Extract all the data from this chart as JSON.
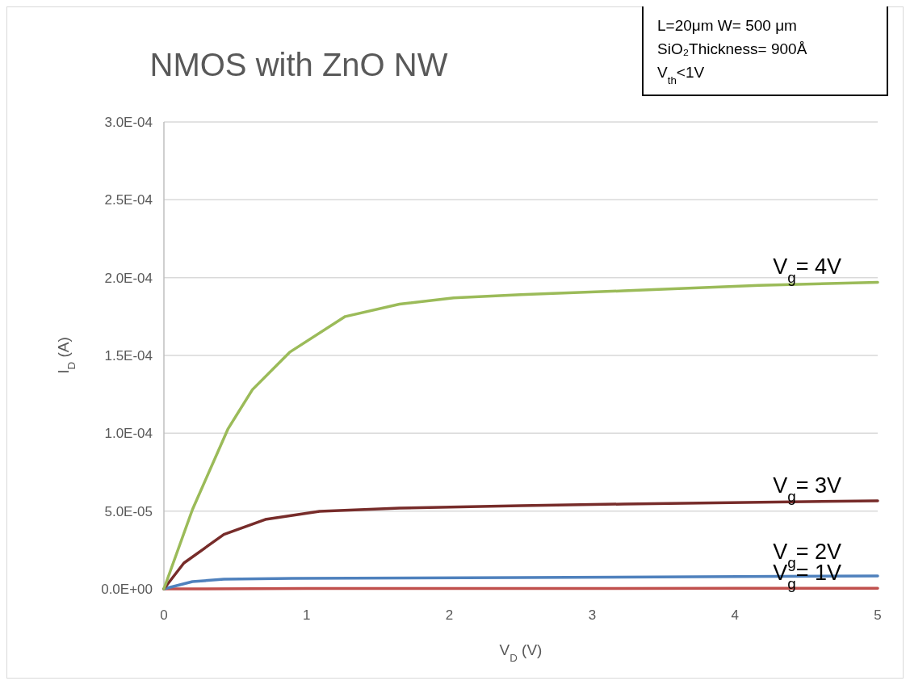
{
  "chart_data": {
    "type": "line",
    "title": "NMOS with ZnO NW",
    "xlabel": "V$_{D}$ (V)",
    "ylabel": "I$_{D}$ (A)",
    "xlim": [
      0,
      5
    ],
    "xticks": [
      0,
      1,
      2,
      3,
      4,
      5
    ],
    "ylim": [
      0,
      0.0003
    ],
    "yticks": [
      {
        "value": 0,
        "label": "0.0E+00"
      },
      {
        "value": 5e-05,
        "label": "5.0E-05"
      },
      {
        "value": 0.0001,
        "label": "1.0E-04"
      },
      {
        "value": 0.00015,
        "label": "1.5E-04"
      },
      {
        "value": 0.0002,
        "label": "2.0E-04"
      },
      {
        "value": 0.00025,
        "label": "2.5E-04"
      },
      {
        "value": 0.0003,
        "label": "3.0E-04"
      }
    ],
    "grid": "y",
    "line_style": "solid",
    "annotations": [
      "L=20μm W= 500 μm",
      "SiO₂Thickness= 900Å",
      "V$_{th}$<1V"
    ],
    "series": [
      {
        "name": "V$_{g}$= 1V",
        "color": "#c0504d",
        "x": [
          0,
          1,
          2,
          3,
          4,
          5
        ],
        "values": [
          0,
          2e-07,
          3e-07,
          3e-07,
          4e-07,
          4e-07
        ]
      },
      {
        "name": "V$_{g}$= 2V",
        "color": "#4f81bd",
        "x": [
          0,
          0.2,
          0.42,
          0.9,
          2.5,
          5
        ],
        "values": [
          0,
          4.7e-06,
          6.2e-06,
          6.7e-06,
          7.3e-06,
          8.3e-06
        ]
      },
      {
        "name": "V$_{g}$= 3V",
        "color": "#772c2a",
        "x": [
          0,
          0.14,
          0.42,
          0.71,
          1.09,
          1.65,
          2.5,
          3.22,
          5
        ],
        "values": [
          0,
          1.66e-05,
          3.5e-05,
          4.46e-05,
          4.98e-05,
          5.19e-05,
          5.35e-05,
          5.45e-05,
          5.66e-05
        ]
      },
      {
        "name": "V$_{g}$= 4V",
        "color": "#9bbb59",
        "x": [
          0,
          0.2,
          0.45,
          0.62,
          0.88,
          1.27,
          1.65,
          2.03,
          2.5,
          3.22,
          4.17,
          5
        ],
        "values": [
          0,
          5.1e-05,
          0.000103,
          0.000128,
          0.000152,
          0.000175,
          0.000183,
          0.000187,
          0.000189,
          0.0001915,
          0.000195,
          0.000197
        ]
      }
    ]
  }
}
